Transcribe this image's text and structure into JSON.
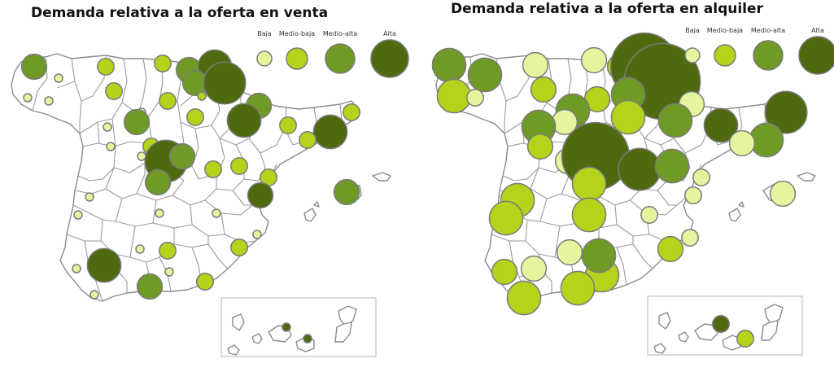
{
  "colors": {
    "Baja": "#e5f59e",
    "Medio-baja": "#b3d41a",
    "Medio-alta": "#6f9a25",
    "Alta": "#4d6a0f"
  },
  "legend_levels": [
    "Baja",
    "Medio-baja",
    "Medio-alta",
    "Alta"
  ],
  "maps": [
    {
      "title": "Demanda relativa a la oferta en venta",
      "legend": [
        "Baja",
        "Medio-baja",
        "Medio-alta",
        "Alta"
      ],
      "bubbles": [
        {
          "level": "Medio-alta",
          "weight": 3
        },
        {
          "level": "Baja",
          "weight": 1
        },
        {
          "level": "Baja",
          "weight": 1
        },
        {
          "level": "Baja",
          "weight": 1
        },
        {
          "level": "Medio-baja",
          "weight": 2
        },
        {
          "level": "Medio-baja",
          "weight": 2
        },
        {
          "level": "Medio-baja",
          "weight": 2
        },
        {
          "level": "Medio-alta",
          "weight": 3
        },
        {
          "level": "Alta",
          "weight": 4
        },
        {
          "level": "Medio-alta",
          "weight": 3
        },
        {
          "level": "Alta",
          "weight": 5
        },
        {
          "level": "Medio-baja",
          "weight": 1
        },
        {
          "level": "Medio-alta",
          "weight": 3
        },
        {
          "level": "Medio-baja",
          "weight": 2
        },
        {
          "level": "Baja",
          "weight": 1
        },
        {
          "level": "Medio-alta",
          "weight": 3
        },
        {
          "level": "Medio-baja",
          "weight": 2
        },
        {
          "level": "Alta",
          "weight": 4
        },
        {
          "level": "Medio-baja",
          "weight": 2
        },
        {
          "level": "Medio-baja",
          "weight": 2
        },
        {
          "level": "Alta",
          "weight": 4
        },
        {
          "level": "Baja",
          "weight": 1
        },
        {
          "level": "Baja",
          "weight": 1
        },
        {
          "level": "Baja",
          "weight": 1
        },
        {
          "level": "Medio-baja",
          "weight": 2
        },
        {
          "level": "Alta",
          "weight": 5
        },
        {
          "level": "Medio-alta",
          "weight": 3
        },
        {
          "level": "Medio-baja",
          "weight": 2
        },
        {
          "level": "Medio-alta",
          "weight": 3
        },
        {
          "level": "Baja",
          "weight": 1
        },
        {
          "level": "Medio-baja",
          "weight": 2
        },
        {
          "level": "Baja",
          "weight": 1
        },
        {
          "level": "Medio-baja",
          "weight": 2
        },
        {
          "level": "Medio-baja",
          "weight": 2
        },
        {
          "level": "Alta",
          "weight": 3
        },
        {
          "level": "Medio-alta",
          "weight": 3
        },
        {
          "level": "Baja",
          "weight": 1
        },
        {
          "level": "Baja",
          "weight": 1
        },
        {
          "level": "Baja",
          "weight": 1
        },
        {
          "level": "Baja",
          "weight": 1
        },
        {
          "level": "Medio-baja",
          "weight": 2
        },
        {
          "level": "Medio-baja",
          "weight": 2
        },
        {
          "level": "Baja",
          "weight": 1
        },
        {
          "level": "Baja",
          "weight": 1
        },
        {
          "level": "Medio-baja",
          "weight": 2
        },
        {
          "level": "Baja",
          "weight": 1
        },
        {
          "level": "Medio-baja",
          "weight": 2
        },
        {
          "level": "Alta",
          "weight": 4
        },
        {
          "level": "Medio-baja",
          "weight": 2
        },
        {
          "level": "Medio-alta",
          "weight": 3
        },
        {
          "level": "Medio-baja",
          "weight": 2
        },
        {
          "level": "Alta",
          "weight": 1
        },
        {
          "level": "Alta",
          "weight": 1
        }
      ]
    },
    {
      "title": "Demanda relativa a la oferta en alquiler",
      "legend": [
        "Baja",
        "Medio-baja",
        "Medio-alta",
        "Alta"
      ],
      "bubbles": [
        {
          "level": "Medio-alta",
          "weight": 4
        },
        {
          "level": "Medio-alta",
          "weight": 4
        },
        {
          "level": "Medio-baja",
          "weight": 4
        },
        {
          "level": "Baja",
          "weight": 2
        },
        {
          "level": "Baja",
          "weight": 3
        },
        {
          "level": "Medio-baja",
          "weight": 3
        },
        {
          "level": "Baja",
          "weight": 3
        },
        {
          "level": "Medio-baja",
          "weight": 3
        },
        {
          "level": "Alta",
          "weight": 8
        },
        {
          "level": "Medio-alta",
          "weight": 4
        },
        {
          "level": "Alta",
          "weight": 9
        },
        {
          "level": "Medio-alta",
          "weight": 4
        },
        {
          "level": "Baja",
          "weight": 3
        },
        {
          "level": "Medio-baja",
          "weight": 3
        },
        {
          "level": "Medio-alta",
          "weight": 4
        },
        {
          "level": "Baja",
          "weight": 3
        },
        {
          "level": "Medio-baja",
          "weight": 4
        },
        {
          "level": "Medio-alta",
          "weight": 4
        },
        {
          "level": "Alta",
          "weight": 4
        },
        {
          "level": "Alta",
          "weight": 5
        },
        {
          "level": "Medio-alta",
          "weight": 4
        },
        {
          "level": "Medio-alta",
          "weight": 4
        },
        {
          "level": "Medio-baja",
          "weight": 3
        },
        {
          "level": "Baja",
          "weight": 3
        },
        {
          "level": "Baja",
          "weight": 2
        },
        {
          "level": "Baja",
          "weight": 3
        },
        {
          "level": "Alta",
          "weight": 8
        },
        {
          "level": "Alta",
          "weight": 5
        },
        {
          "level": "Medio-baja",
          "weight": 4
        },
        {
          "level": "Medio-baja",
          "weight": 4
        },
        {
          "level": "Medio-alta",
          "weight": 4
        },
        {
          "level": "Medio-baja",
          "weight": 4
        },
        {
          "level": "Baja",
          "weight": 2
        },
        {
          "level": "Baja",
          "weight": 3
        },
        {
          "level": "Baja",
          "weight": 2
        },
        {
          "level": "Baja",
          "weight": 3
        },
        {
          "level": "Medio-baja",
          "weight": 4
        },
        {
          "level": "Baja",
          "weight": 2
        },
        {
          "level": "Baja",
          "weight": 3
        },
        {
          "level": "Medio-baja",
          "weight": 4
        },
        {
          "level": "Medio-alta",
          "weight": 4
        },
        {
          "level": "Medio-baja",
          "weight": 3
        },
        {
          "level": "Baja",
          "weight": 2
        },
        {
          "level": "Medio-baja",
          "weight": 3
        },
        {
          "level": "Baja",
          "weight": 3
        },
        {
          "level": "Medio-baja",
          "weight": 4
        },
        {
          "level": "Medio-baja",
          "weight": 4
        },
        {
          "level": "Alta",
          "weight": 2
        },
        {
          "level": "Medio-baja",
          "weight": 2
        }
      ]
    }
  ]
}
